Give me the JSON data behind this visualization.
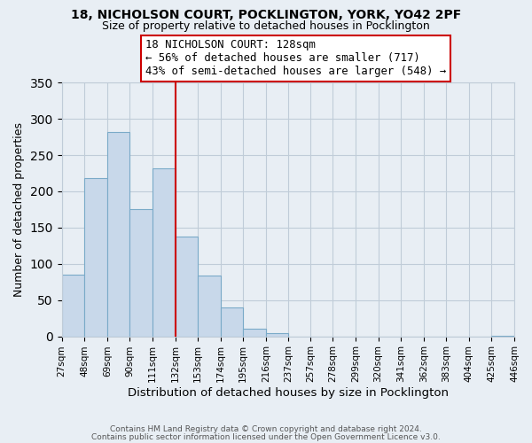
{
  "title": "18, NICHOLSON COURT, POCKLINGTON, YORK, YO42 2PF",
  "subtitle": "Size of property relative to detached houses in Pocklington",
  "xlabel": "Distribution of detached houses by size in Pocklington",
  "ylabel": "Number of detached properties",
  "bin_edges": [
    27,
    48,
    69,
    90,
    111,
    132,
    153,
    174,
    195,
    216,
    237,
    257,
    278,
    299,
    320,
    341,
    362,
    383,
    404,
    425,
    446
  ],
  "bin_labels": [
    "27sqm",
    "48sqm",
    "69sqm",
    "90sqm",
    "111sqm",
    "132sqm",
    "153sqm",
    "174sqm",
    "195sqm",
    "216sqm",
    "237sqm",
    "257sqm",
    "278sqm",
    "299sqm",
    "320sqm",
    "341sqm",
    "362sqm",
    "383sqm",
    "404sqm",
    "425sqm",
    "446sqm"
  ],
  "counts": [
    85,
    218,
    282,
    175,
    232,
    138,
    84,
    40,
    11,
    4,
    0,
    0,
    0,
    0,
    0,
    0,
    0,
    0,
    0,
    1
  ],
  "bar_facecolor": "#c8d8ea",
  "bar_edgecolor": "#7aaac8",
  "vline_x": 132,
  "vline_color": "#cc0000",
  "ylim": [
    0,
    350
  ],
  "yticks": [
    0,
    50,
    100,
    150,
    200,
    250,
    300,
    350
  ],
  "annotation_title": "18 NICHOLSON COURT: 128sqm",
  "annotation_line1": "← 56% of detached houses are smaller (717)",
  "annotation_line2": "43% of semi-detached houses are larger (548) →",
  "footer1": "Contains HM Land Registry data © Crown copyright and database right 2024.",
  "footer2": "Contains public sector information licensed under the Open Government Licence v3.0.",
  "background_color": "#e8eef4",
  "plot_background": "#e8eef4",
  "grid_color": "#c0ccd8"
}
